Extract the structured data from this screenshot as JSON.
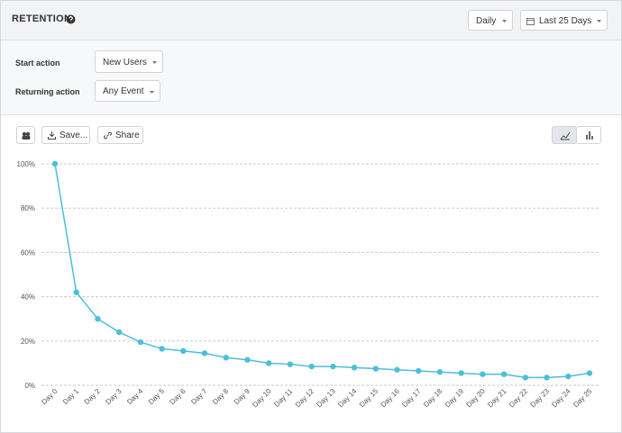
{
  "header": {
    "title": "RETENTION",
    "interval": "Daily",
    "date_range": "Last 25 Days"
  },
  "controls": {
    "start_label": "Start action",
    "start_value": "New Users",
    "return_label": "Returning action",
    "return_value": "Any Event"
  },
  "toolbar": {
    "save": "Save...",
    "share": "Share"
  },
  "chart_data": {
    "type": "line",
    "categories": [
      "Day 0",
      "Day 1",
      "Day 2",
      "Day 3",
      "Day 4",
      "Day 5",
      "Day 6",
      "Day 7",
      "Day 8",
      "Day 9",
      "Day 10",
      "Day 11",
      "Day 12",
      "Day 13",
      "Day 14",
      "Day 15",
      "Day 16",
      "Day 17",
      "Day 18",
      "Day 19",
      "Day 20",
      "Day 21",
      "Day 22",
      "Day 23",
      "Day 24",
      "Day 25"
    ],
    "series": [
      {
        "color": "#4bbfd9",
        "values": [
          100,
          42,
          30,
          24,
          19.5,
          16.5,
          15.5,
          14.5,
          12.5,
          11.5,
          10,
          9.5,
          8.5,
          8.5,
          8,
          7.5,
          7,
          6.5,
          6,
          5.5,
          5,
          5,
          3.5,
          3.5,
          4,
          5.5
        ]
      }
    ],
    "ylim": [
      0,
      100
    ],
    "yticks": [
      {
        "value": 0,
        "label": "0%"
      },
      {
        "value": 20,
        "label": "20%"
      },
      {
        "value": 40,
        "label": "40%"
      },
      {
        "value": 60,
        "label": "60%"
      },
      {
        "value": 80,
        "label": "80%"
      },
      {
        "value": 100,
        "label": "100%"
      }
    ],
    "grid": true
  }
}
